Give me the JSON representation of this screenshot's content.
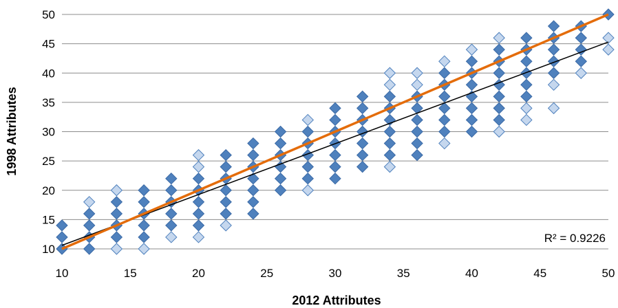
{
  "chart_data": {
    "type": "scatter",
    "xlabel": "2012 Attributes",
    "ylabel": "1998 Attributes",
    "xlim": [
      10,
      50
    ],
    "ylim": [
      10,
      50
    ],
    "x_ticks": [
      10,
      15,
      20,
      25,
      30,
      35,
      40,
      45,
      50
    ],
    "y_ticks": [
      10,
      15,
      20,
      25,
      30,
      35,
      40,
      45,
      50
    ],
    "grid": true,
    "r_squared_label": "R² = 0.9226",
    "colors": {
      "marker_dark_fill": "#4f81bd",
      "marker_dark_edge": "#3b6aa6",
      "marker_light_fill": "#c5d7ee",
      "marker_light_edge": "#4f81bd",
      "identity_line": "#e46c0a",
      "trend_line": "#000000",
      "grid": "#8c8c8c"
    },
    "columns": [
      {
        "x": 10,
        "dense": [
          10,
          14
        ],
        "light": []
      },
      {
        "x": 12,
        "dense": [
          10,
          16
        ],
        "light": [
          18
        ]
      },
      {
        "x": 14,
        "dense": [
          12,
          18
        ],
        "light": [
          10,
          20
        ]
      },
      {
        "x": 16,
        "dense": [
          12,
          20
        ],
        "light": [
          10
        ]
      },
      {
        "x": 18,
        "dense": [
          14,
          22
        ],
        "light": [
          12
        ]
      },
      {
        "x": 20,
        "dense": [
          14,
          22
        ],
        "light": [
          12,
          24,
          26
        ]
      },
      {
        "x": 22,
        "dense": [
          16,
          26
        ],
        "light": [
          14
        ]
      },
      {
        "x": 24,
        "dense": [
          16,
          28
        ],
        "light": []
      },
      {
        "x": 26,
        "dense": [
          20,
          30
        ],
        "light": []
      },
      {
        "x": 28,
        "dense": [
          22,
          30
        ],
        "light": [
          20,
          32
        ]
      },
      {
        "x": 30,
        "dense": [
          22,
          34
        ],
        "light": []
      },
      {
        "x": 32,
        "dense": [
          24,
          36
        ],
        "light": []
      },
      {
        "x": 34,
        "dense": [
          26,
          36
        ],
        "light": [
          24,
          38,
          40
        ]
      },
      {
        "x": 36,
        "dense": [
          26,
          36
        ],
        "light": [
          38,
          40
        ]
      },
      {
        "x": 38,
        "dense": [
          30,
          40
        ],
        "light": [
          28,
          42
        ]
      },
      {
        "x": 40,
        "dense": [
          30,
          42
        ],
        "light": [
          44
        ]
      },
      {
        "x": 42,
        "dense": [
          32,
          44
        ],
        "light": [
          30,
          46
        ]
      },
      {
        "x": 44,
        "dense": [
          36,
          46
        ],
        "light": [
          32,
          34
        ]
      },
      {
        "x": 46,
        "dense": [
          40,
          48
        ],
        "light": [
          34,
          38
        ]
      },
      {
        "x": 48,
        "dense": [
          42,
          48
        ],
        "light": [
          40
        ]
      },
      {
        "x": 50,
        "dense": [
          50,
          50
        ],
        "light": [
          44,
          46
        ]
      }
    ],
    "series": [
      {
        "type": "line",
        "x": [
          10,
          50
        ],
        "y": [
          10,
          50
        ]
      },
      {
        "type": "line",
        "x": [
          10,
          50
        ],
        "y": [
          10.6,
          45.3
        ]
      }
    ]
  }
}
